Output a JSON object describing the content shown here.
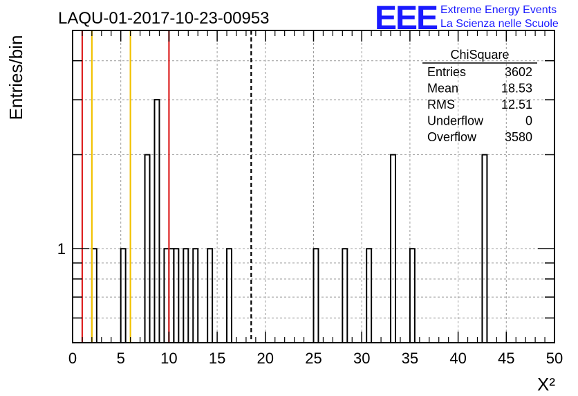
{
  "chart_data": {
    "type": "bar",
    "title": "LAQU-01-2017-10-23-00953",
    "xlabel": "X²",
    "ylabel": "Entries/bin",
    "xlim": [
      0,
      50
    ],
    "ylim_log": [
      0.5,
      5
    ],
    "log_y": true,
    "grid": true,
    "bin_width": 0.5,
    "x_ticks": [
      "0",
      "5",
      "10",
      "15",
      "20",
      "25",
      "30",
      "35",
      "40",
      "45",
      "50"
    ],
    "y_ticks": [
      "1"
    ],
    "bins": [
      {
        "x0": 2.0,
        "value": 1
      },
      {
        "x0": 5.0,
        "value": 1
      },
      {
        "x0": 7.5,
        "value": 2
      },
      {
        "x0": 8.5,
        "value": 3
      },
      {
        "x0": 9.5,
        "value": 1
      },
      {
        "x0": 10.0,
        "value": 1
      },
      {
        "x0": 10.5,
        "value": 1
      },
      {
        "x0": 11.5,
        "value": 1
      },
      {
        "x0": 12.5,
        "value": 1
      },
      {
        "x0": 14.0,
        "value": 1
      },
      {
        "x0": 16.0,
        "value": 1
      },
      {
        "x0": 25.0,
        "value": 1
      },
      {
        "x0": 28.0,
        "value": 1
      },
      {
        "x0": 30.5,
        "value": 1
      },
      {
        "x0": 33.0,
        "value": 2
      },
      {
        "x0": 35.0,
        "value": 1
      },
      {
        "x0": 42.5,
        "value": 2
      }
    ],
    "vertical_lines": [
      {
        "x": 1.0,
        "color": "#dd2222",
        "style": "solid"
      },
      {
        "x": 2.0,
        "color": "#f2c200",
        "style": "solid"
      },
      {
        "x": 6.0,
        "color": "#f2c200",
        "style": "solid"
      },
      {
        "x": 10.0,
        "color": "#dd2222",
        "style": "solid"
      },
      {
        "x": 18.53,
        "color": "#000000",
        "style": "dashed"
      }
    ],
    "stats": {
      "title": "ChiSquare",
      "rows": [
        {
          "label": "Entries",
          "value": "3602"
        },
        {
          "label": "Mean",
          "value": "18.53"
        },
        {
          "label": "RMS",
          "value": "12.51"
        },
        {
          "label": "Underflow",
          "value": "0"
        },
        {
          "label": "Overflow",
          "value": "3580"
        }
      ]
    }
  },
  "logo": {
    "mark": "EEE",
    "line1": "Extreme Energy Events",
    "line2": "La Scienza nelle Scuole",
    "color": "#1a1aff"
  }
}
